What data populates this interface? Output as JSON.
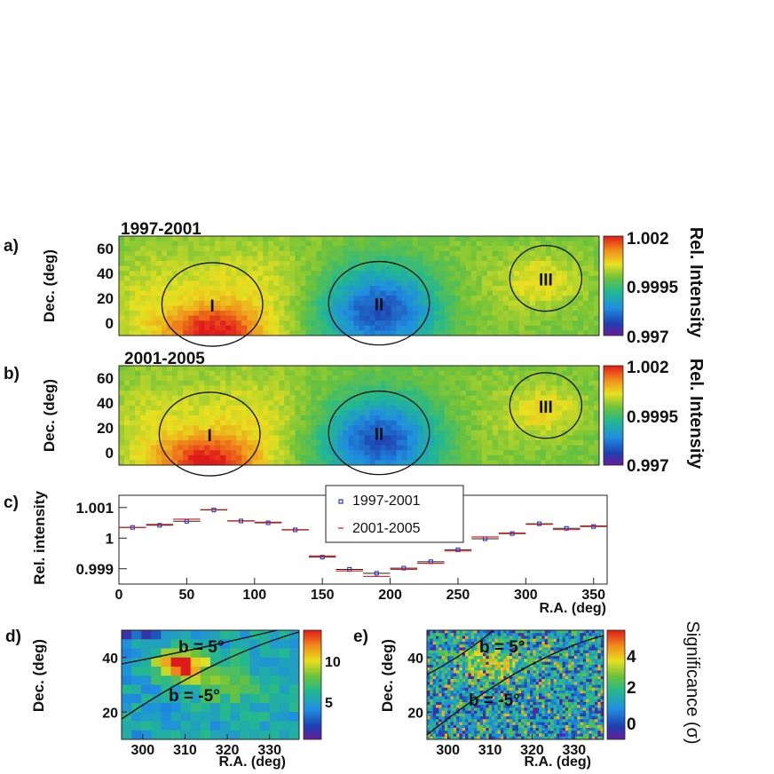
{
  "chart_data": [
    {
      "panel": "a)",
      "type": "heatmap",
      "title": "1997-2001",
      "ylabel": "Dec. (deg)",
      "yticks": [
        "60",
        "40",
        "20",
        "0"
      ],
      "xlim": [
        0,
        360
      ],
      "ylim": [
        -10,
        70
      ],
      "colorbar": {
        "label": "Rel. Intensity",
        "ticks": [
          "1.002",
          "0.9995",
          "0.997"
        ],
        "range": [
          0.997,
          1.002
        ]
      },
      "regions": [
        {
          "label": "I",
          "ra": 70,
          "dec": 15
        },
        {
          "label": "II",
          "ra": 195,
          "dec": 16
        },
        {
          "label": "III",
          "ra": 320,
          "dec": 36
        }
      ]
    },
    {
      "panel": "b)",
      "type": "heatmap",
      "title": "2001-2005",
      "ylabel": "Dec. (deg)",
      "yticks": [
        "60",
        "40",
        "20",
        "0"
      ],
      "xlim": [
        0,
        360
      ],
      "ylim": [
        -10,
        70
      ],
      "colorbar": {
        "label": "Rel. Intensity",
        "ticks": [
          "1.002",
          "0.9995",
          "0.997"
        ],
        "range": [
          0.997,
          1.002
        ]
      },
      "regions": [
        {
          "label": "I",
          "ra": 68,
          "dec": 15
        },
        {
          "label": "II",
          "ra": 195,
          "dec": 16
        },
        {
          "label": "III",
          "ra": 320,
          "dec": 38
        }
      ]
    },
    {
      "panel": "c)",
      "type": "scatter",
      "ylabel": "Rel. intensity",
      "xlabel": "R.A. (deg)",
      "xticks": [
        "0",
        "50",
        "100",
        "150",
        "200",
        "250",
        "300",
        "350"
      ],
      "yticks": [
        "1.001",
        "1",
        "0.999"
      ],
      "xlim": [
        0,
        360
      ],
      "ylim": [
        0.9985,
        1.0014
      ],
      "x": [
        10,
        30,
        50,
        70,
        90,
        110,
        130,
        150,
        170,
        190,
        210,
        230,
        250,
        270,
        290,
        310,
        330,
        350
      ],
      "series": [
        {
          "name": "1997-2001",
          "values": [
            1.00035,
            1.00042,
            1.00055,
            1.00092,
            1.00056,
            1.0005,
            1.00027,
            0.99938,
            0.99898,
            0.99885,
            0.99902,
            0.99923,
            0.99962,
            0.99998,
            1.00015,
            1.00047,
            1.00032,
            1.00038
          ]
        },
        {
          "name": "2001-2005",
          "values": [
            1.00035,
            1.00045,
            1.00062,
            1.00093,
            1.00057,
            1.00052,
            1.00028,
            0.99942,
            0.99893,
            0.99875,
            0.99898,
            0.99918,
            0.99958,
            1.00004,
            1.00017,
            1.00045,
            1.00028,
            1.0004
          ]
        }
      ]
    },
    {
      "panel": "d)",
      "type": "heatmap",
      "ylabel": "Dec. (deg)",
      "xlabel": "R.A. (deg)",
      "xticks": [
        "300",
        "310",
        "320",
        "330"
      ],
      "yticks": [
        "40",
        "20"
      ],
      "xlim": [
        295,
        337
      ],
      "ylim": [
        10,
        50
      ],
      "colorbar": {
        "ticks": [
          "10",
          "5"
        ],
        "range": [
          0,
          13
        ]
      },
      "annotations": [
        "b = 5°",
        "b = -5°"
      ]
    },
    {
      "panel": "e)",
      "type": "heatmap",
      "ylabel": "Dec. (deg)",
      "xlabel": "R.A. (deg)",
      "xticks": [
        "300",
        "310",
        "320",
        "330"
      ],
      "yticks": [
        "40",
        "20"
      ],
      "xlim": [
        295,
        337
      ],
      "ylim": [
        10,
        50
      ],
      "colorbar": {
        "label": "Significance (σ)",
        "ticks": [
          "4",
          "2",
          "0"
        ],
        "range": [
          -1,
          5.5
        ]
      },
      "annotations": [
        "b = 5°",
        "b = -5°"
      ]
    }
  ]
}
